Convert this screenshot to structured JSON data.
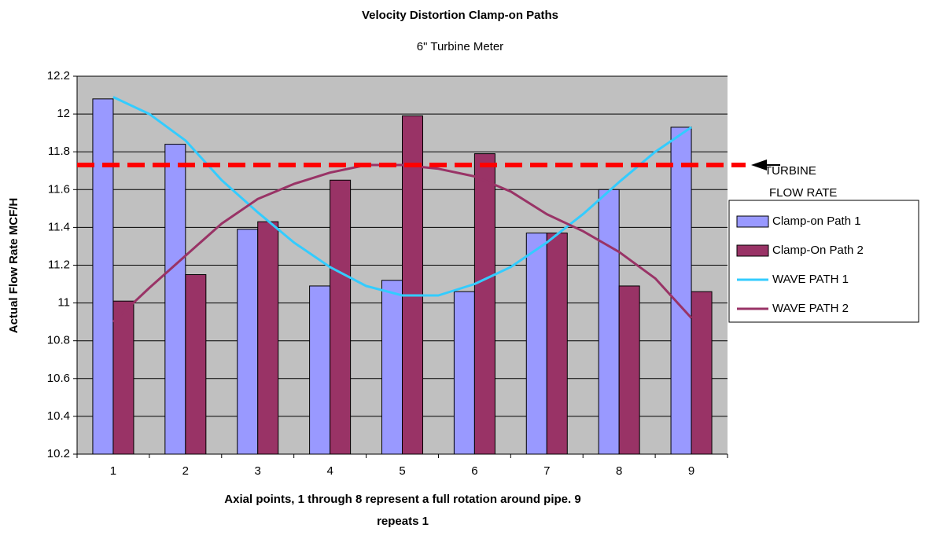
{
  "chart_data": {
    "type": "bar",
    "title": "Velocity Distortion Clamp-on Paths",
    "subtitle": "6\" Turbine Meter",
    "y_label": "Actual Flow Rate MCF/H",
    "x_label_lines": [
      "Axial points, 1 through 8 represent a full rotation around pipe.   9",
      "repeats 1"
    ],
    "categories": [
      1,
      2,
      3,
      4,
      5,
      6,
      7,
      8,
      9
    ],
    "ylim": [
      10.2,
      12.2
    ],
    "yticks": [
      10.2,
      10.4,
      10.6,
      10.8,
      11,
      11.2,
      11.4,
      11.6,
      11.8,
      12,
      12.2
    ],
    "grid": true,
    "series": [
      {
        "name": "Clamp-on Path 1",
        "type": "bar",
        "color": "#9999ff",
        "values": [
          12.08,
          11.84,
          11.39,
          11.09,
          11.12,
          11.06,
          11.37,
          11.6,
          11.93
        ]
      },
      {
        "name": "Clamp-On Path 2",
        "type": "bar",
        "color": "#993366",
        "values": [
          11.01,
          11.15,
          11.43,
          11.65,
          11.99,
          11.79,
          11.37,
          11.09,
          11.06
        ]
      },
      {
        "name": "WAVE PATH 1",
        "type": "line",
        "color": "#33ccff",
        "x": [
          1,
          1.5,
          2,
          2.5,
          3,
          3.5,
          4,
          4.5,
          5,
          5.5,
          6,
          6.5,
          7,
          7.5,
          8,
          8.5,
          9
        ],
        "values": [
          12.09,
          12.0,
          11.86,
          11.65,
          11.48,
          11.32,
          11.19,
          11.09,
          11.04,
          11.04,
          11.1,
          11.19,
          11.32,
          11.47,
          11.64,
          11.8,
          11.93
        ]
      },
      {
        "name": "WAVE PATH 2",
        "type": "line",
        "color": "#993366",
        "x": [
          1,
          1.5,
          2,
          2.5,
          3,
          3.5,
          4,
          4.5,
          5,
          5.5,
          6,
          6.5,
          7,
          7.5,
          8,
          8.5,
          9
        ],
        "values": [
          10.9,
          11.08,
          11.25,
          11.42,
          11.55,
          11.63,
          11.69,
          11.73,
          11.73,
          11.71,
          11.67,
          11.59,
          11.47,
          11.38,
          11.27,
          11.13,
          10.92
        ]
      }
    ],
    "reference_line": {
      "value": 11.73,
      "color": "#ff0000",
      "label_lines": [
        "TURBINE",
        "FLOW RATE"
      ]
    }
  }
}
